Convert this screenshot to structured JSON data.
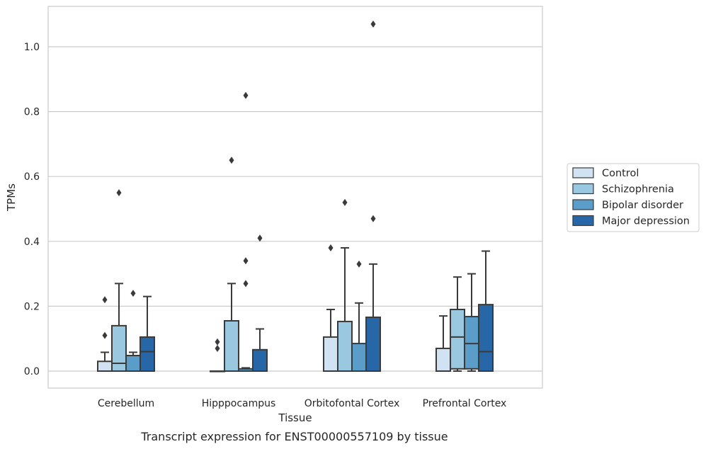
{
  "chart_data": {
    "type": "box",
    "xlabel": "Tissue",
    "ylabel": "TPMs",
    "caption": "Transcript expression for ENST00000557109 by tissue",
    "categories": [
      "Cerebellum",
      "Hipppocampus",
      "Orbitofontal Cortex",
      "Prefrontal Cortex"
    ],
    "yticks": [
      "0.0",
      "0.2",
      "0.4",
      "0.6",
      "0.8",
      "1.0"
    ],
    "ylim": [
      -0.05,
      1.13
    ],
    "grid": "horizontal",
    "legend_placement": "center-right",
    "series": [
      {
        "name": "Control",
        "color": "#d1e2f2",
        "boxes": [
          {
            "q1": 0.0,
            "median": 0.0,
            "q3": 0.03,
            "whisker_low": 0.0,
            "whisker_high": 0.058,
            "outliers": [
              0.11,
              0.22
            ]
          },
          {
            "q1": 0.0,
            "median": 0.0,
            "q3": 0.0,
            "whisker_low": 0.0,
            "whisker_high": 0.0,
            "outliers": [
              0.07,
              0.09
            ]
          },
          {
            "q1": 0.0,
            "median": 0.0,
            "q3": 0.105,
            "whisker_low": 0.0,
            "whisker_high": 0.19,
            "outliers": [
              0.38
            ]
          },
          {
            "q1": 0.0,
            "median": 0.0,
            "q3": 0.07,
            "whisker_low": 0.0,
            "whisker_high": 0.17,
            "outliers": []
          }
        ]
      },
      {
        "name": "Schizophrenia",
        "color": "#9ac8e0",
        "boxes": [
          {
            "q1": 0.0,
            "median": 0.024,
            "q3": 0.14,
            "whisker_low": 0.0,
            "whisker_high": 0.27,
            "outliers": [
              0.55
            ]
          },
          {
            "q1": 0.0,
            "median": 0.0,
            "q3": 0.155,
            "whisker_low": 0.0,
            "whisker_high": 0.27,
            "outliers": [
              0.65
            ]
          },
          {
            "q1": 0.0,
            "median": 0.0,
            "q3": 0.153,
            "whisker_low": 0.0,
            "whisker_high": 0.38,
            "outliers": [
              0.52
            ]
          },
          {
            "q1": 0.007,
            "median": 0.105,
            "q3": 0.19,
            "whisker_low": 0.0,
            "whisker_high": 0.29,
            "outliers": []
          }
        ]
      },
      {
        "name": "Bipolar disorder",
        "color": "#5a9dc9",
        "boxes": [
          {
            "q1": 0.0,
            "median": 0.0,
            "q3": 0.048,
            "whisker_low": 0.0,
            "whisker_high": 0.058,
            "outliers": [
              0.24
            ]
          },
          {
            "q1": 0.0,
            "median": 0.0,
            "q3": 0.007,
            "whisker_low": 0.0,
            "whisker_high": 0.01,
            "outliers": [
              0.27,
              0.34,
              0.85
            ]
          },
          {
            "q1": 0.0,
            "median": 0.0,
            "q3": 0.085,
            "whisker_low": 0.0,
            "whisker_high": 0.21,
            "outliers": [
              0.33
            ]
          },
          {
            "q1": 0.007,
            "median": 0.085,
            "q3": 0.168,
            "whisker_low": 0.0,
            "whisker_high": 0.3,
            "outliers": []
          }
        ]
      },
      {
        "name": "Major depression",
        "color": "#2767a7",
        "boxes": [
          {
            "q1": 0.0,
            "median": 0.06,
            "q3": 0.105,
            "whisker_low": 0.0,
            "whisker_high": 0.23,
            "outliers": []
          },
          {
            "q1": 0.0,
            "median": 0.0,
            "q3": 0.066,
            "whisker_low": 0.0,
            "whisker_high": 0.13,
            "outliers": [
              0.41
            ]
          },
          {
            "q1": 0.0,
            "median": 0.0,
            "q3": 0.166,
            "whisker_low": 0.0,
            "whisker_high": 0.33,
            "outliers": [
              0.47,
              1.07
            ]
          },
          {
            "q1": 0.0,
            "median": 0.06,
            "q3": 0.205,
            "whisker_low": 0.0,
            "whisker_high": 0.37,
            "outliers": []
          }
        ]
      }
    ]
  }
}
